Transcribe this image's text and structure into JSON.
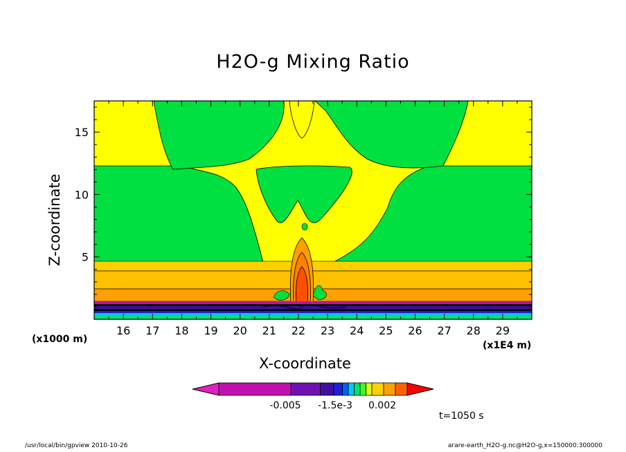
{
  "chart_data": {
    "type": "heatmap",
    "title": "H2O-g Mixing Ratio",
    "xlabel": "X-coordinate",
    "ylabel": "Z-coordinate",
    "x_unit": "(x1E4 m)",
    "z_unit": "(x1000 m)",
    "xlim": [
      15.0,
      30.0
    ],
    "ylim": [
      0,
      17.5
    ],
    "x_ticks": [
      "16",
      "17",
      "18",
      "19",
      "20",
      "21",
      "22",
      "23",
      "24",
      "25",
      "26",
      "27",
      "28",
      "29"
    ],
    "y_ticks": [
      "5",
      "10",
      "15"
    ],
    "colorbar": {
      "labels": [
        "-0.005",
        "-1.5e-3",
        "0.002"
      ],
      "colors": [
        "#e020c0",
        "#c010b0",
        "#7010b0",
        "#4010a0",
        "#2020d0",
        "#0060ff",
        "#00c8ff",
        "#00e070",
        "#40ff20",
        "#d8ff10",
        "#ffd000",
        "#ffa000",
        "#ff6000",
        "#ff0000"
      ]
    },
    "annotation": "t=1050 s"
  },
  "footer": {
    "left": "/usr/local/bin/gpview  2010-10-26",
    "right": "arare-earth_H2O-g.nc@H2O-g,x=150000:300000"
  }
}
